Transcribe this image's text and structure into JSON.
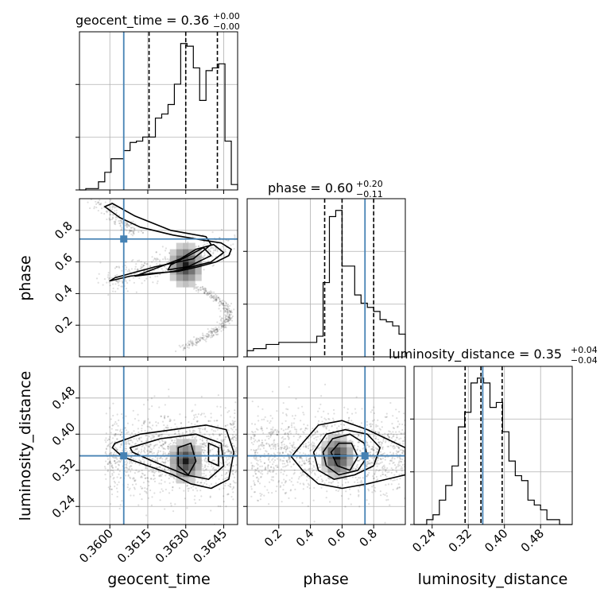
{
  "chart_data": {
    "type": "corner",
    "parameters": [
      "geocent_time",
      "phase",
      "luminosity_distance"
    ],
    "truths": {
      "geocent_time": 0.36055,
      "phase": 0.745,
      "luminosity_distance": 0.352
    },
    "axes": {
      "geocent_time": {
        "range": [
          0.3588,
          0.36505
        ],
        "ticks": [
          "0.3600",
          "0.3615",
          "0.3630",
          "0.3645"
        ]
      },
      "phase": {
        "range": [
          0.0,
          1.0
        ],
        "ticks": [
          "0.2",
          "0.4",
          "0.6",
          "0.8"
        ]
      },
      "luminosity_distance": {
        "range": [
          0.2,
          0.55
        ],
        "ticks": [
          "0.24",
          "0.32",
          "0.40",
          "0.48"
        ]
      }
    },
    "histograms": [
      {
        "parameter": "geocent_time",
        "title": "geocent_time = 0.36",
        "title_sup": "+0.00",
        "title_sub": "−0.00",
        "quantiles": [
          0.36155,
          0.363,
          0.36425
        ],
        "bin_edges": [
          0.3588,
          0.35905,
          0.3593,
          0.35955,
          0.3598,
          0.36005,
          0.3603,
          0.36055,
          0.3608,
          0.36105,
          0.3613,
          0.36155,
          0.3618,
          0.36205,
          0.3623,
          0.36255,
          0.3628,
          0.36305,
          0.3633,
          0.36355,
          0.3638,
          0.36405,
          0.3643,
          0.36455,
          0.3648,
          0.36505
        ],
        "counts": [
          0,
          1,
          1,
          6,
          13,
          23,
          23,
          29,
          35,
          36,
          39,
          39,
          53,
          56,
          63,
          78,
          108,
          106,
          90,
          66,
          88,
          90,
          93,
          36,
          4
        ]
      },
      {
        "parameter": "phase",
        "title": "phase = 0.60",
        "title_sup": "+0.20",
        "title_sub": "−0.11",
        "quantiles": [
          0.49,
          0.6,
          0.8
        ],
        "bin_edges": [
          0.0,
          0.04,
          0.08,
          0.12,
          0.16,
          0.2,
          0.24,
          0.28,
          0.32,
          0.36,
          0.4,
          0.44,
          0.48,
          0.52,
          0.56,
          0.6,
          0.64,
          0.68,
          0.72,
          0.76,
          0.8,
          0.84,
          0.88,
          0.92,
          0.96,
          1.0
        ],
        "counts": [
          3,
          4,
          4,
          6,
          6,
          7,
          7,
          7,
          7,
          7,
          7,
          10,
          36,
          68,
          71,
          44,
          44,
          30,
          26,
          24,
          22,
          18,
          17,
          15,
          11
        ]
      },
      {
        "parameter": "luminosity_distance",
        "title": "luminosity_distance = 0.35",
        "title_sup": "+0.04",
        "title_sub": "−0.04",
        "quantiles": [
          0.313,
          0.348,
          0.395
        ],
        "bin_edges": [
          0.2,
          0.214,
          0.228,
          0.242,
          0.256,
          0.27,
          0.284,
          0.298,
          0.312,
          0.326,
          0.34,
          0.354,
          0.368,
          0.382,
          0.396,
          0.41,
          0.424,
          0.438,
          0.452,
          0.466,
          0.48,
          0.494,
          0.508,
          0.522,
          0.536,
          0.55
        ],
        "counts": [
          0,
          0,
          1,
          2,
          5,
          8,
          12,
          20,
          23,
          29,
          30,
          29,
          24,
          25,
          19,
          13,
          10,
          9,
          5,
          4,
          3,
          1,
          1,
          0,
          0
        ]
      }
    ],
    "samples_2d": [
      {
        "x": "geocent_time",
        "y": "phase",
        "contours": [
          [
            [
              0.36,
              0.48
            ],
            [
              0.3608,
              0.51
            ],
            [
              0.3618,
              0.53
            ],
            [
              0.3627,
              0.54
            ],
            [
              0.3635,
              0.57
            ],
            [
              0.3642,
              0.6
            ],
            [
              0.3647,
              0.64
            ],
            [
              0.3648,
              0.68
            ],
            [
              0.3644,
              0.72
            ],
            [
              0.3636,
              0.74
            ],
            [
              0.3625,
              0.77
            ],
            [
              0.3612,
              0.82
            ],
            [
              0.3604,
              0.88
            ],
            [
              0.3598,
              0.95
            ],
            [
              0.3601,
              0.97
            ],
            [
              0.361,
              0.89
            ],
            [
              0.3624,
              0.8
            ],
            [
              0.3638,
              0.76
            ],
            [
              0.364,
              0.71
            ],
            [
              0.3633,
              0.62
            ],
            [
              0.3618,
              0.57
            ],
            [
              0.3602,
              0.5
            ]
          ],
          [
            [
              0.361,
              0.51
            ],
            [
              0.3625,
              0.54
            ],
            [
              0.364,
              0.6
            ],
            [
              0.3645,
              0.66
            ],
            [
              0.3641,
              0.71
            ],
            [
              0.3634,
              0.68
            ],
            [
              0.3628,
              0.62
            ],
            [
              0.3615,
              0.54
            ]
          ],
          [
            [
              0.3623,
              0.55
            ],
            [
              0.3631,
              0.57
            ],
            [
              0.364,
              0.64
            ],
            [
              0.3637,
              0.69
            ],
            [
              0.363,
              0.63
            ],
            [
              0.3624,
              0.58
            ]
          ]
        ],
        "peak": [
          0.363,
          0.58
        ]
      },
      {
        "x": "geocent_time",
        "y": "luminosity_distance",
        "contours": [
          [
            [
              0.3602,
              0.38
            ],
            [
              0.3612,
              0.4
            ],
            [
              0.3625,
              0.41
            ],
            [
              0.3638,
              0.42
            ],
            [
              0.3646,
              0.41
            ],
            [
              0.3649,
              0.36
            ],
            [
              0.3647,
              0.3
            ],
            [
              0.364,
              0.28
            ],
            [
              0.3632,
              0.29
            ],
            [
              0.3625,
              0.31
            ],
            [
              0.3615,
              0.33
            ],
            [
              0.3605,
              0.35
            ],
            [
              0.3601,
              0.37
            ]
          ],
          [
            [
              0.3608,
              0.37
            ],
            [
              0.362,
              0.39
            ],
            [
              0.3634,
              0.4
            ],
            [
              0.3644,
              0.38
            ],
            [
              0.3645,
              0.33
            ],
            [
              0.3639,
              0.3
            ],
            [
              0.363,
              0.31
            ],
            [
              0.3617,
              0.34
            ],
            [
              0.3609,
              0.36
            ]
          ],
          [
            [
              0.3627,
              0.37
            ],
            [
              0.3632,
              0.38
            ],
            [
              0.3634,
              0.34
            ],
            [
              0.3631,
              0.31
            ],
            [
              0.3627,
              0.33
            ]
          ],
          [
            [
              0.3639,
              0.38
            ],
            [
              0.3643,
              0.37
            ],
            [
              0.3643,
              0.33
            ],
            [
              0.3639,
              0.34
            ]
          ]
        ],
        "peak": [
          0.363,
          0.34
        ]
      },
      {
        "x": "phase",
        "y": "luminosity_distance",
        "contours": [
          [
            [
              0.28,
              0.35
            ],
            [
              0.35,
              0.38
            ],
            [
              0.45,
              0.42
            ],
            [
              0.6,
              0.43
            ],
            [
              0.76,
              0.41
            ],
            [
              0.88,
              0.39
            ],
            [
              1.0,
              0.37
            ],
            [
              1.0,
              0.31
            ],
            [
              0.88,
              0.3
            ],
            [
              0.76,
              0.29
            ],
            [
              0.6,
              0.28
            ],
            [
              0.45,
              0.29
            ],
            [
              0.35,
              0.32
            ]
          ],
          [
            [
              0.42,
              0.36
            ],
            [
              0.5,
              0.4
            ],
            [
              0.62,
              0.41
            ],
            [
              0.76,
              0.4
            ],
            [
              0.84,
              0.37
            ],
            [
              0.8,
              0.33
            ],
            [
              0.68,
              0.31
            ],
            [
              0.55,
              0.3
            ],
            [
              0.45,
              0.32
            ]
          ],
          [
            [
              0.48,
              0.36
            ],
            [
              0.54,
              0.39
            ],
            [
              0.65,
              0.4
            ],
            [
              0.74,
              0.38
            ],
            [
              0.76,
              0.35
            ],
            [
              0.7,
              0.32
            ],
            [
              0.58,
              0.31
            ],
            [
              0.5,
              0.33
            ]
          ],
          [
            [
              0.53,
              0.36
            ],
            [
              0.58,
              0.38
            ],
            [
              0.66,
              0.38
            ],
            [
              0.7,
              0.35
            ],
            [
              0.65,
              0.32
            ],
            [
              0.57,
              0.33
            ]
          ]
        ],
        "peak": [
          0.57,
          0.35
        ]
      }
    ]
  }
}
